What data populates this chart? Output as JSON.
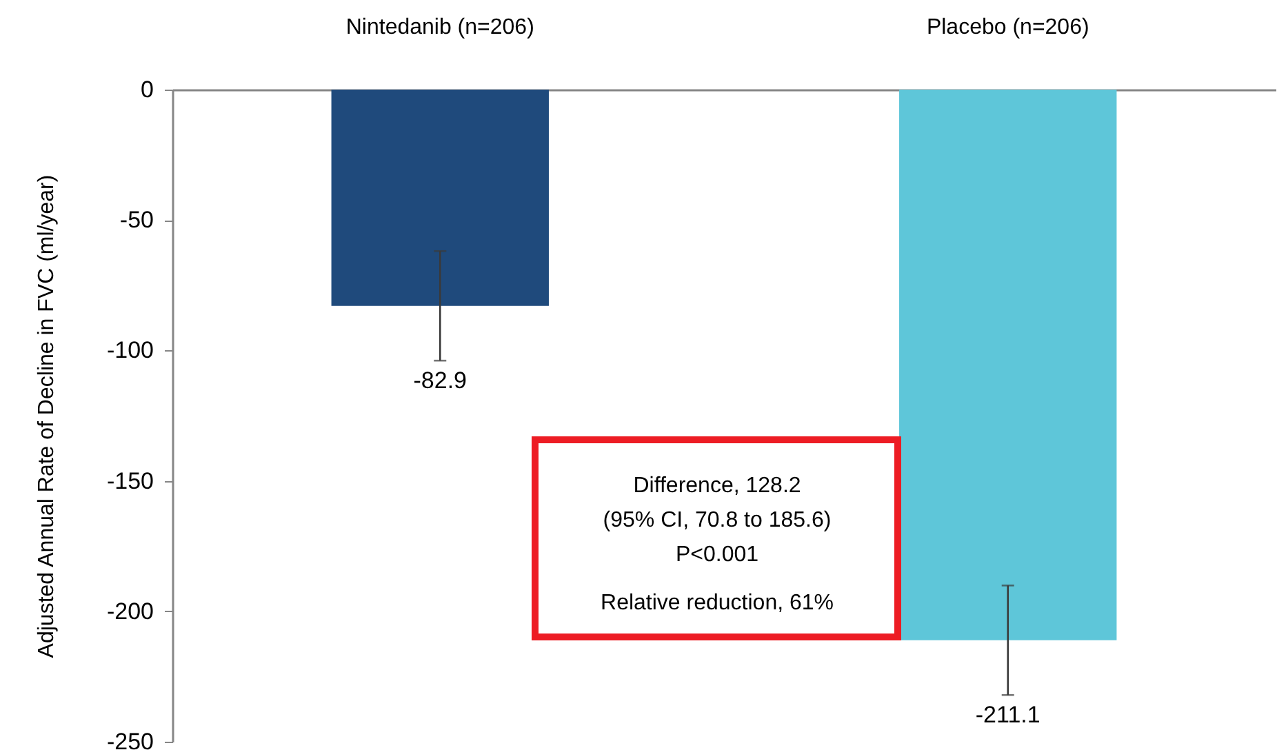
{
  "chart_data": {
    "type": "bar",
    "ylabel": "Adjusted Annual Rate of Decline in FVC (ml/year)",
    "categories": [
      "Nintedanib (n=206)",
      "Placebo (n=206)"
    ],
    "values": [
      -82.9,
      -211.1
    ],
    "colors": [
      "#1f4a7c",
      "#5ec6d9"
    ],
    "errors": [
      21,
      21
    ],
    "data_labels": true,
    "ylim": [
      -250,
      0
    ],
    "yticks": [
      0,
      -50,
      -100,
      -150,
      -200,
      -250
    ],
    "annotations": [
      "Difference, 128.2",
      "(95% CI, 70.8 to 185.6)",
      "P<0.001",
      "Relative reduction, 61%"
    ]
  }
}
